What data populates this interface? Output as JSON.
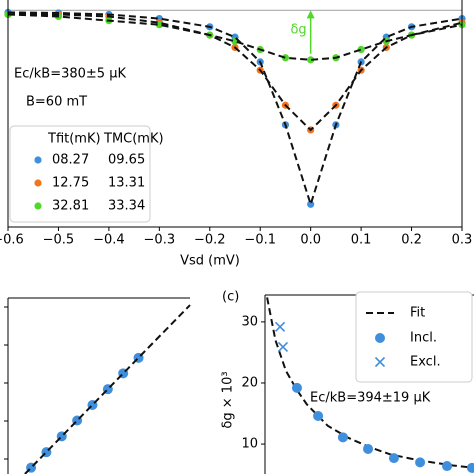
{
  "chart_data": [
    {
      "type": "scatter",
      "xlabel": "Vsd (mV)",
      "xlim": [
        -0.6,
        0.3
      ],
      "xticks": [
        {
          "value": -0.6,
          "label": "−0.6"
        },
        {
          "value": -0.5,
          "label": "−0.5"
        },
        {
          "value": -0.4,
          "label": "−0.4"
        },
        {
          "value": -0.3,
          "label": "−0.3"
        },
        {
          "value": -0.2,
          "label": "−0.2"
        },
        {
          "value": -0.1,
          "label": "−0.1"
        },
        {
          "value": 0,
          "label": "0.0"
        },
        0.1,
        0.2,
        0.3
      ],
      "ylim": [
        0.895,
        1.005
      ],
      "reference_line": 1.0,
      "annotations": [
        "Ec/kB=380±5 μK",
        "B=60 mT",
        "δg"
      ],
      "legend_title": [
        "Tfit(mK)",
        "TMC(mK)"
      ],
      "x": [
        -0.6,
        -0.5,
        -0.4,
        -0.3,
        -0.2,
        -0.15,
        -0.1,
        -0.05,
        0,
        0.05,
        0.1,
        0.15,
        0.2,
        0.3
      ],
      "series": [
        {
          "name": "08.27",
          "t_mc": "09.65",
          "color": "#3f8fdc",
          "values": [
            0.999,
            0.9987,
            0.998,
            0.996,
            0.992,
            0.987,
            0.975,
            0.9445,
            0.906,
            0.9445,
            0.975,
            0.987,
            0.992,
            0.996
          ]
        },
        {
          "name": "12.75",
          "t_mc": "13.31",
          "color": "#f2751e",
          "values": [
            0.998,
            0.998,
            0.997,
            0.994,
            0.988,
            0.982,
            0.971,
            0.954,
            0.942,
            0.954,
            0.971,
            0.982,
            0.988,
            0.994
          ]
        },
        {
          "name": "32.81",
          "t_mc": "33.34",
          "color": "#4fd82a",
          "values": [
            0.998,
            0.997,
            0.995,
            0.993,
            0.988,
            0.985,
            0.981,
            0.977,
            0.976,
            0.977,
            0.981,
            0.985,
            0.988,
            0.993
          ]
        }
      ]
    },
    {
      "type": "scatter",
      "xlim": [
        0,
        50
      ],
      "ylim": [
        0,
        50
      ],
      "color": "#3f8fdc",
      "x": [
        6,
        10,
        14,
        18,
        22,
        26,
        30,
        34
      ],
      "values": [
        1.8,
        6.2,
        10.7,
        15.2,
        19.6,
        24.1,
        28.6,
        33.0
      ],
      "fit": {
        "x": [
          4.4,
          47.4
        ],
        "y": [
          0,
          48
        ]
      }
    },
    {
      "type": "scatter",
      "panel_label": "(c)",
      "ylabel": "δg × 10³",
      "xlim": [
        0,
        100
      ],
      "ylim": [
        5.1,
        34.4
      ],
      "yticks": [
        10,
        20,
        30
      ],
      "annotation": "Ec/kB=394±19 μK",
      "color": "#3f8fdc",
      "fit": {
        "name": "Fit",
        "x": [
          1,
          5,
          10,
          15,
          20,
          30,
          40,
          50,
          60,
          70,
          80,
          90,
          100
        ],
        "y": [
          34,
          27,
          22,
          19,
          16.5,
          13,
          11,
          9.5,
          8.3,
          7.6,
          7,
          6.5,
          6.1
        ]
      },
      "included": {
        "name": "Incl.",
        "x": [
          15.3,
          25.4,
          37.3,
          49.3,
          61.7,
          74.2,
          87.1,
          99
        ],
        "y": [
          19.2,
          14.6,
          11.1,
          9.2,
          7.7,
          7.0,
          6.4,
          6.1
        ]
      },
      "excluded": {
        "name": "Excl.",
        "x": [
          7.2,
          8.6
        ],
        "y": [
          29.2,
          25.9
        ]
      }
    }
  ]
}
